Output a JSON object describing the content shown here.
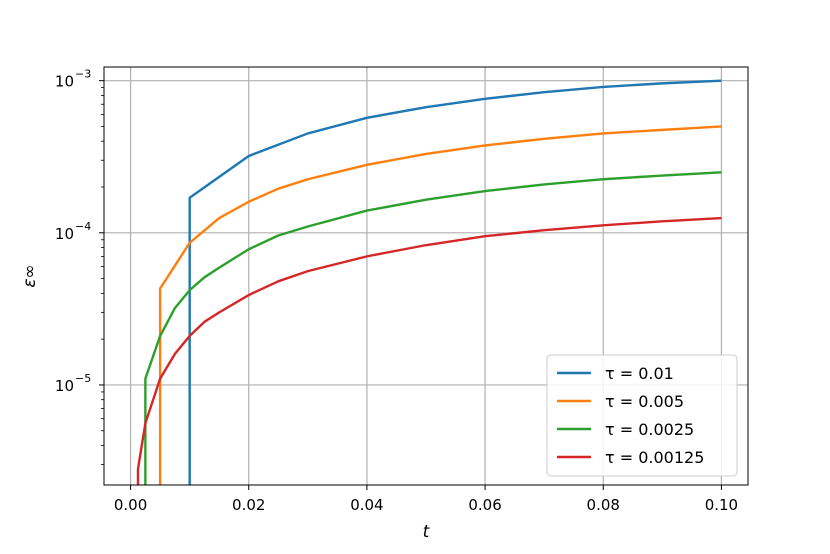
{
  "chart_data": {
    "type": "line",
    "title": "",
    "xlabel": "t",
    "ylabel": "ε∞",
    "yscale": "log",
    "xlim": [
      -0.0045,
      0.1045
    ],
    "ylim": [
      2.2e-06,
      0.00123
    ],
    "grid": true,
    "legend_position": "lower-right",
    "x_ticks": [
      {
        "value": 0.0,
        "label": "0.00"
      },
      {
        "value": 0.02,
        "label": "0.02"
      },
      {
        "value": 0.04,
        "label": "0.04"
      },
      {
        "value": 0.06,
        "label": "0.06"
      },
      {
        "value": 0.08,
        "label": "0.08"
      },
      {
        "value": 0.1,
        "label": "0.10"
      }
    ],
    "y_ticks": [
      {
        "value": 1e-05,
        "base": "10",
        "exp": "−5"
      },
      {
        "value": 0.0001,
        "base": "10",
        "exp": "−4"
      },
      {
        "value": 0.001,
        "base": "10",
        "exp": "−3"
      }
    ],
    "series": [
      {
        "name": "τ = 0.01",
        "color": "#1f77b4",
        "points": [
          [
            0.01,
            2.2e-06
          ],
          [
            0.01,
            0.00017
          ],
          [
            0.02,
            0.00032
          ],
          [
            0.03,
            0.00045
          ],
          [
            0.04,
            0.00057
          ],
          [
            0.05,
            0.00067
          ],
          [
            0.06,
            0.00076
          ],
          [
            0.07,
            0.00084
          ],
          [
            0.08,
            0.00091
          ],
          [
            0.09,
            0.00096
          ],
          [
            0.1,
            0.001
          ]
        ]
      },
      {
        "name": "τ = 0.005",
        "color": "#ff7f0e",
        "points": [
          [
            0.005,
            2.2e-06
          ],
          [
            0.005,
            4.3e-05
          ],
          [
            0.01,
            8.6e-05
          ],
          [
            0.015,
            0.000125
          ],
          [
            0.02,
            0.00016
          ],
          [
            0.025,
            0.000195
          ],
          [
            0.03,
            0.000225
          ],
          [
            0.04,
            0.00028
          ],
          [
            0.05,
            0.00033
          ],
          [
            0.06,
            0.000375
          ],
          [
            0.07,
            0.000415
          ],
          [
            0.08,
            0.00045
          ],
          [
            0.09,
            0.000475
          ],
          [
            0.1,
            0.0005
          ]
        ]
      },
      {
        "name": "τ = 0.0025",
        "color": "#2ca02c",
        "points": [
          [
            0.0025,
            2.2e-06
          ],
          [
            0.0025,
            1.1e-05
          ],
          [
            0.005,
            2.1e-05
          ],
          [
            0.0075,
            3.2e-05
          ],
          [
            0.01,
            4.2e-05
          ],
          [
            0.0125,
            5.1e-05
          ],
          [
            0.015,
            5.9e-05
          ],
          [
            0.02,
            7.8e-05
          ],
          [
            0.025,
            9.6e-05
          ],
          [
            0.03,
            0.00011
          ],
          [
            0.04,
            0.00014
          ],
          [
            0.05,
            0.000165
          ],
          [
            0.06,
            0.000188
          ],
          [
            0.07,
            0.000208
          ],
          [
            0.08,
            0.000225
          ],
          [
            0.09,
            0.000238
          ],
          [
            0.1,
            0.00025
          ]
        ]
      },
      {
        "name": "τ = 0.00125",
        "color": "#d62728",
        "points": [
          [
            0.00125,
            2.2e-06
          ],
          [
            0.00125,
            2.8e-06
          ],
          [
            0.0025,
            5.6e-06
          ],
          [
            0.005,
            1.1e-05
          ],
          [
            0.0075,
            1.6e-05
          ],
          [
            0.01,
            2.1e-05
          ],
          [
            0.0125,
            2.6e-05
          ],
          [
            0.015,
            3e-05
          ],
          [
            0.02,
            3.9e-05
          ],
          [
            0.025,
            4.8e-05
          ],
          [
            0.03,
            5.6e-05
          ],
          [
            0.04,
            7e-05
          ],
          [
            0.05,
            8.3e-05
          ],
          [
            0.06,
            9.5e-05
          ],
          [
            0.07,
            0.000104
          ],
          [
            0.08,
            0.000112
          ],
          [
            0.09,
            0.000119
          ],
          [
            0.1,
            0.000125
          ]
        ]
      }
    ]
  }
}
